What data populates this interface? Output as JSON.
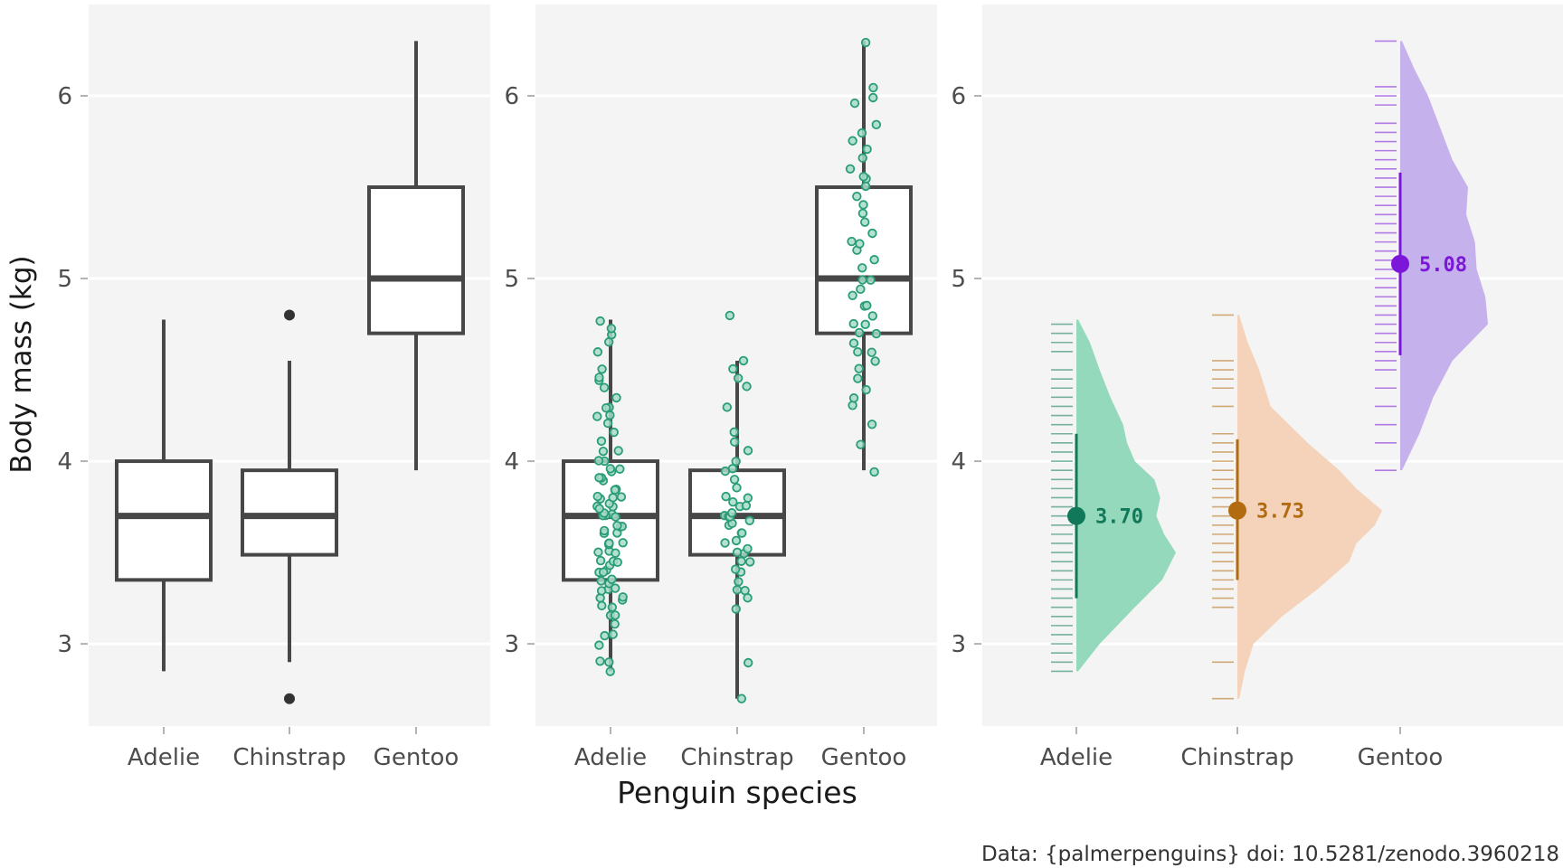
{
  "figure": {
    "ylabel": "Body mass (kg)",
    "xlabel": "Penguin species",
    "caption": "Data: {palmerpenguins} doi: 10.5281/zenodo.3960218"
  },
  "chart_data": [
    {
      "type": "box",
      "panel": "left",
      "categories": [
        "Adelie",
        "Chinstrap",
        "Gentoo"
      ],
      "ylim": [
        2.55,
        6.5
      ],
      "yticks": [
        3,
        4,
        5,
        6
      ],
      "grid": true,
      "boxes": [
        {
          "category": "Adelie",
          "lower_whisker": 2.85,
          "q1": 3.35,
          "median": 3.7,
          "q3": 4.0,
          "upper_whisker": 4.775,
          "outliers": []
        },
        {
          "category": "Chinstrap",
          "lower_whisker": 2.9,
          "q1": 3.4875,
          "median": 3.7,
          "q3": 3.95,
          "upper_whisker": 4.55,
          "outliers": [
            2.7,
            4.8
          ]
        },
        {
          "category": "Gentoo",
          "lower_whisker": 3.95,
          "q1": 4.7,
          "median": 5.0,
          "q3": 5.5,
          "upper_whisker": 6.3,
          "outliers": []
        }
      ],
      "box_fill": "#ffffff",
      "box_stroke": "#474747"
    },
    {
      "type": "box",
      "panel": "middle",
      "overlay": "jittered points",
      "categories": [
        "Adelie",
        "Chinstrap",
        "Gentoo"
      ],
      "ylim": [
        2.55,
        6.5
      ],
      "yticks": [
        3,
        4,
        5,
        6
      ],
      "grid": true,
      "boxes": [
        {
          "category": "Adelie",
          "lower_whisker": 2.85,
          "q1": 3.35,
          "median": 3.7,
          "q3": 4.0,
          "upper_whisker": 4.775
        },
        {
          "category": "Chinstrap",
          "lower_whisker": 2.7,
          "q1": 3.4875,
          "median": 3.7,
          "q3": 3.95,
          "upper_whisker": 4.55
        },
        {
          "category": "Gentoo",
          "lower_whisker": 3.95,
          "q1": 4.7,
          "median": 5.0,
          "q3": 5.5,
          "upper_whisker": 6.3
        }
      ],
      "points": {
        "Adelie": [
          2.85,
          2.9,
          2.9,
          3.0,
          3.05,
          3.05,
          3.1,
          3.15,
          3.15,
          3.2,
          3.2,
          3.25,
          3.25,
          3.25,
          3.3,
          3.3,
          3.3,
          3.325,
          3.35,
          3.35,
          3.4,
          3.4,
          3.4,
          3.425,
          3.45,
          3.45,
          3.45,
          3.5,
          3.5,
          3.5,
          3.55,
          3.55,
          3.55,
          3.55,
          3.6,
          3.6,
          3.625,
          3.65,
          3.65,
          3.65,
          3.7,
          3.7,
          3.7,
          3.7,
          3.725,
          3.75,
          3.75,
          3.75,
          3.775,
          3.8,
          3.8,
          3.8,
          3.8,
          3.85,
          3.85,
          3.9,
          3.9,
          3.9,
          3.95,
          3.95,
          3.95,
          4.0,
          4.0,
          4.05,
          4.05,
          4.1,
          4.15,
          4.2,
          4.25,
          4.25,
          4.3,
          4.3,
          4.35,
          4.4,
          4.45,
          4.45,
          4.5,
          4.6,
          4.65,
          4.7,
          4.725,
          4.775
        ],
        "Chinstrap": [
          2.7,
          2.9,
          3.2,
          3.25,
          3.3,
          3.3,
          3.35,
          3.4,
          3.4,
          3.45,
          3.45,
          3.5,
          3.5,
          3.525,
          3.55,
          3.575,
          3.6,
          3.6,
          3.65,
          3.65,
          3.675,
          3.7,
          3.7,
          3.7,
          3.725,
          3.75,
          3.75,
          3.775,
          3.8,
          3.8,
          3.85,
          3.9,
          3.95,
          3.95,
          4.0,
          4.05,
          4.1,
          4.15,
          4.3,
          4.4,
          4.45,
          4.5,
          4.55,
          4.8
        ],
        "Gentoo": [
          3.95,
          4.1,
          4.2,
          4.3,
          4.35,
          4.4,
          4.45,
          4.5,
          4.55,
          4.6,
          4.6,
          4.65,
          4.7,
          4.7,
          4.75,
          4.75,
          4.8,
          4.85,
          4.85,
          4.9,
          4.95,
          5.0,
          5.0,
          5.05,
          5.1,
          5.15,
          5.2,
          5.2,
          5.25,
          5.3,
          5.35,
          5.4,
          5.45,
          5.5,
          5.55,
          5.55,
          5.6,
          5.65,
          5.7,
          5.75,
          5.8,
          5.85,
          5.95,
          6.0,
          6.05,
          6.3
        ]
      },
      "point_color": "#2a9d78"
    },
    {
      "type": "raincloud",
      "panel": "right",
      "categories": [
        "Adelie",
        "Chinstrap",
        "Gentoo"
      ],
      "ylim": [
        2.55,
        6.5
      ],
      "yticks": [
        3,
        4,
        5,
        6
      ],
      "grid": true,
      "series": [
        {
          "category": "Adelie",
          "mean": 3.7,
          "label": "3.70",
          "interval": [
            3.25,
            4.15
          ],
          "range": [
            2.85,
            4.775
          ],
          "color": "#11785a",
          "fill": "#95d9bd"
        },
        {
          "category": "Chinstrap",
          "mean": 3.73,
          "label": "3.73",
          "interval": [
            3.35,
            4.12
          ],
          "range": [
            2.7,
            4.8
          ],
          "color": "#b26b10",
          "fill": "#f4d3ba"
        },
        {
          "category": "Gentoo",
          "mean": 5.08,
          "label": "5.08",
          "interval": [
            4.58,
            5.58
          ],
          "range": [
            3.95,
            6.3
          ],
          "color": "#7c16d9",
          "fill": "#c5b1ec"
        }
      ],
      "densities": {
        "Adelie": [
          [
            2.85,
            0.0
          ],
          [
            3.0,
            0.22
          ],
          [
            3.2,
            0.58
          ],
          [
            3.35,
            0.86
          ],
          [
            3.5,
            1.0
          ],
          [
            3.6,
            0.88
          ],
          [
            3.7,
            0.8
          ],
          [
            3.8,
            0.84
          ],
          [
            3.9,
            0.78
          ],
          [
            4.0,
            0.58
          ],
          [
            4.1,
            0.5
          ],
          [
            4.2,
            0.46
          ],
          [
            4.35,
            0.33
          ],
          [
            4.5,
            0.22
          ],
          [
            4.65,
            0.12
          ],
          [
            4.775,
            0.0
          ]
        ],
        "Chinstrap": [
          [
            2.7,
            0.0
          ],
          [
            2.85,
            0.04
          ],
          [
            3.0,
            0.1
          ],
          [
            3.15,
            0.3
          ],
          [
            3.3,
            0.55
          ],
          [
            3.45,
            0.77
          ],
          [
            3.55,
            0.82
          ],
          [
            3.65,
            0.95
          ],
          [
            3.73,
            1.0
          ],
          [
            3.85,
            0.82
          ],
          [
            3.95,
            0.7
          ],
          [
            4.1,
            0.48
          ],
          [
            4.3,
            0.22
          ],
          [
            4.5,
            0.14
          ],
          [
            4.65,
            0.06
          ],
          [
            4.8,
            0.0
          ]
        ],
        "Gentoo": [
          [
            3.95,
            0.0
          ],
          [
            4.15,
            0.2
          ],
          [
            4.35,
            0.36
          ],
          [
            4.55,
            0.58
          ],
          [
            4.75,
            0.99
          ],
          [
            4.9,
            0.96
          ],
          [
            5.05,
            0.86
          ],
          [
            5.2,
            0.84
          ],
          [
            5.35,
            0.74
          ],
          [
            5.5,
            0.76
          ],
          [
            5.65,
            0.58
          ],
          [
            5.8,
            0.46
          ],
          [
            6.0,
            0.3
          ],
          [
            6.15,
            0.14
          ],
          [
            6.3,
            0.0
          ]
        ]
      },
      "rug": {
        "Adelie": [
          2.85,
          2.9,
          2.95,
          3.0,
          3.05,
          3.1,
          3.15,
          3.2,
          3.25,
          3.3,
          3.35,
          3.4,
          3.45,
          3.5,
          3.55,
          3.6,
          3.65,
          3.7,
          3.75,
          3.8,
          3.85,
          3.9,
          3.95,
          4.0,
          4.05,
          4.1,
          4.15,
          4.2,
          4.25,
          4.3,
          4.35,
          4.4,
          4.45,
          4.5,
          4.6,
          4.65,
          4.7,
          4.75
        ],
        "Chinstrap": [
          2.7,
          2.9,
          3.2,
          3.25,
          3.3,
          3.35,
          3.4,
          3.45,
          3.5,
          3.55,
          3.6,
          3.65,
          3.7,
          3.75,
          3.8,
          3.85,
          3.9,
          3.95,
          4.0,
          4.05,
          4.1,
          4.15,
          4.3,
          4.4,
          4.45,
          4.5,
          4.55,
          4.8
        ],
        "Gentoo": [
          3.95,
          4.1,
          4.2,
          4.3,
          4.4,
          4.5,
          4.55,
          4.6,
          4.65,
          4.7,
          4.75,
          4.8,
          4.85,
          4.9,
          4.95,
          5.0,
          5.05,
          5.1,
          5.15,
          5.2,
          5.25,
          5.3,
          5.35,
          5.4,
          5.45,
          5.5,
          5.55,
          5.6,
          5.65,
          5.7,
          5.75,
          5.8,
          5.85,
          5.95,
          6.0,
          6.05,
          6.3
        ]
      }
    }
  ],
  "colors": {
    "panel_bg": "#f4f4f4",
    "grid": "#ffffff",
    "tick": "#b3b3b3"
  }
}
